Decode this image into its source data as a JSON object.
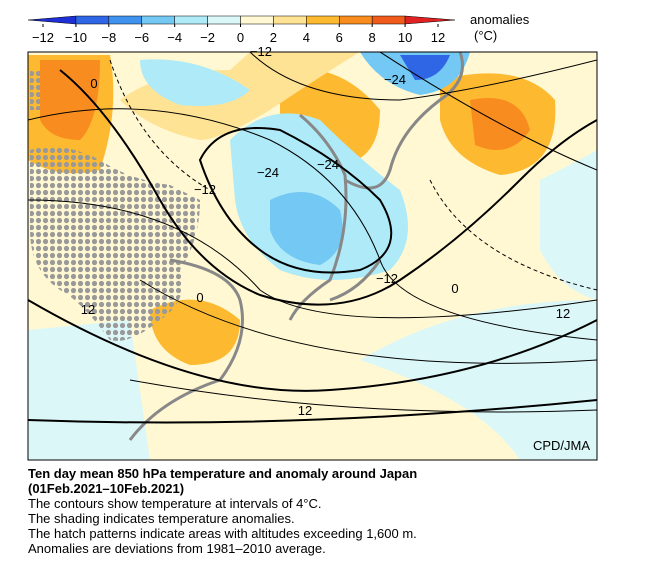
{
  "colorbar": {
    "label": "anomalies",
    "unit": "(°C)",
    "range": [
      -12,
      12
    ],
    "ticks": [
      {
        "value": -12,
        "label": "−12"
      },
      {
        "value": -10,
        "label": "−10"
      },
      {
        "value": -8,
        "label": "−8"
      },
      {
        "value": -6,
        "label": "−6"
      },
      {
        "value": -4,
        "label": "−4"
      },
      {
        "value": -2,
        "label": "−2"
      },
      0,
      2,
      4,
      6,
      8,
      10,
      12
    ],
    "colors": [
      "#1f2fd6",
      "#2f66e6",
      "#3f93ef",
      "#74c8f4",
      "#aeeaf7",
      "#dcf7f8",
      "#fff8d2",
      "#ffe394",
      "#fdba30",
      "#f98c1f",
      "#f05b1b",
      "#e02222"
    ]
  },
  "map": {
    "contour_labels": [
      "0",
      "−12",
      "−24",
      "−24",
      "−24",
      "−12",
      "0",
      "12",
      "−12",
      "0",
      "12",
      "12"
    ],
    "credit": "CPD/JMA"
  },
  "caption": {
    "title": "Ten day mean 850 hPa temperature and anomaly around Japan",
    "period": "(01Feb.2021–10Feb.2021)",
    "lines": [
      "The contours show temperature at intervals of 4°C.",
      "The shading indicates temperature anomalies.",
      "The hatch patterns indicate areas with altitudes exceeding 1,600 m.",
      "Anomalies are deviations from 1981–2010 average."
    ]
  }
}
